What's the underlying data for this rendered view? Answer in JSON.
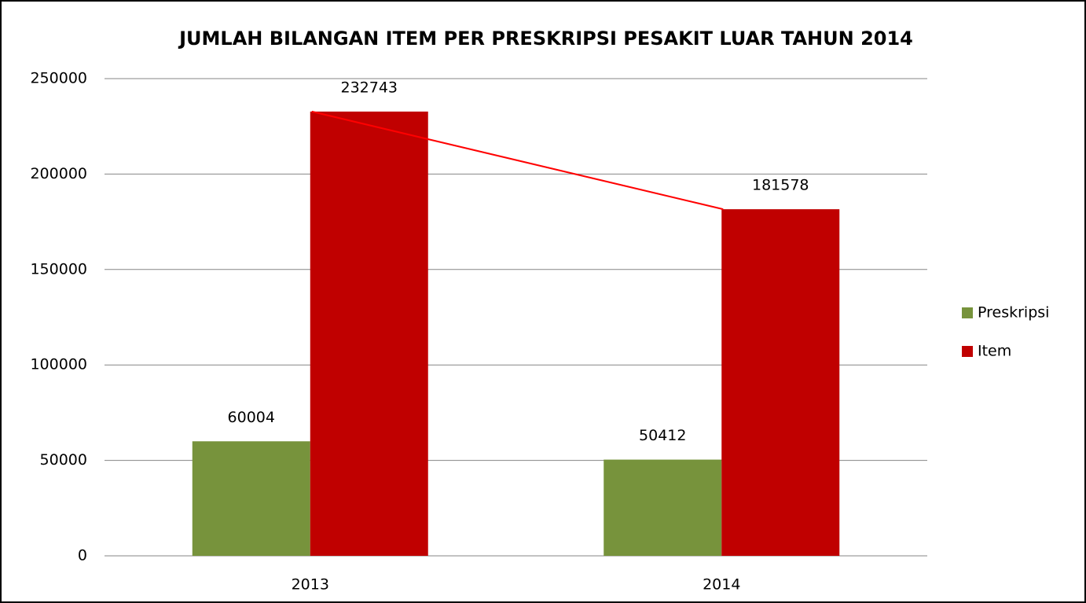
{
  "chart_data": {
    "type": "bar",
    "title": "JUMLAH BILANGAN ITEM PER PRESKRIPSI PESAKIT LUAR TAHUN 2014",
    "categories": [
      "2013",
      "2014"
    ],
    "series": [
      {
        "name": "Preskripsi",
        "color": "#77933c",
        "values": [
          60004,
          50412
        ]
      },
      {
        "name": "Item",
        "color": "#c00000",
        "values": [
          232743,
          181578
        ]
      }
    ],
    "trend_line_color": "#ff0000",
    "ylim": [
      0,
      250000
    ],
    "yticks": [
      0,
      50000,
      100000,
      150000,
      200000,
      250000
    ],
    "grid": true,
    "legend": "right"
  }
}
